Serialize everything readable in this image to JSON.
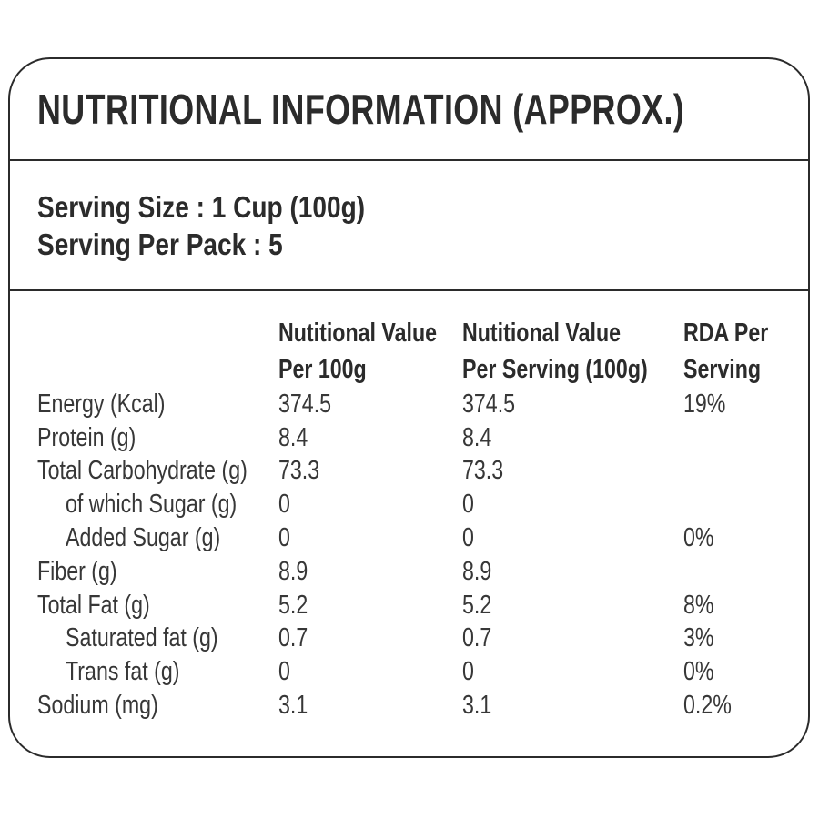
{
  "colors": {
    "border": "#2b2b2b",
    "heading_text": "#2b2b2b",
    "body_text": "#373737",
    "background": "#ffffff"
  },
  "label": {
    "title": "NUTRITIONAL INFORMATION (APPROX.)",
    "serving": {
      "size_line": "Serving Size : 1 Cup (100g)",
      "pack_line": "Serving Per Pack : 5"
    },
    "table": {
      "columns": [
        {
          "line1": "",
          "line2": ""
        },
        {
          "line1": "Nutitional Value",
          "line2": "Per 100g"
        },
        {
          "line1": "Nutitional Value",
          "line2": "Per Serving (100g)"
        },
        {
          "line1": "RDA Per",
          "line2": "Serving"
        }
      ],
      "rows": [
        {
          "name": "Energy (Kcal)",
          "per100g": "374.5",
          "perServing": "374.5",
          "rda": "19%"
        },
        {
          "name": "Protein (g)",
          "per100g": "8.4",
          "perServing": "8.4",
          "rda": ""
        },
        {
          "name": "Total Carbohydrate (g)",
          "per100g": "73.3",
          "perServing": "73.3",
          "rda": ""
        },
        {
          "name": "of which Sugar (g)",
          "per100g": "0",
          "perServing": "0",
          "rda": ""
        },
        {
          "name": "Added Sugar (g)",
          "per100g": "0",
          "perServing": "0",
          "rda": "0%"
        },
        {
          "name": "Fiber (g)",
          "per100g": "8.9",
          "perServing": "8.9",
          "rda": ""
        },
        {
          "name": "Total Fat (g)",
          "per100g": "5.2",
          "perServing": "5.2",
          "rda": "8%"
        },
        {
          "name": "Saturated fat (g)",
          "per100g": "0.7",
          "perServing": "0.7",
          "rda": "3%"
        },
        {
          "name": "Trans fat (g)",
          "per100g": "0",
          "perServing": "0",
          "rda": "0%"
        },
        {
          "name": "Sodium (mg)",
          "per100g": "3.1",
          "perServing": "3.1",
          "rda": "0.2%"
        }
      ]
    }
  }
}
